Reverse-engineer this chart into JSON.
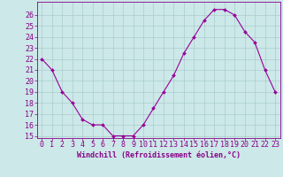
{
  "hours": [
    0,
    1,
    2,
    3,
    4,
    5,
    6,
    7,
    8,
    9,
    10,
    11,
    12,
    13,
    14,
    15,
    16,
    17,
    18,
    19,
    20,
    21,
    22,
    23
  ],
  "values": [
    22,
    21,
    19,
    18,
    16.5,
    16,
    16,
    15,
    15,
    15,
    16,
    17.5,
    19,
    20.5,
    22.5,
    24,
    25.5,
    26.5,
    26.5,
    26,
    24.5,
    23.5,
    21,
    19
  ],
  "line_color": "#990099",
  "marker_color": "#990099",
  "bg_color": "#cce8e8",
  "grid_color": "#aacccc",
  "xlabel": "Windchill (Refroidissement éolien,°C)",
  "ylim": [
    14.8,
    27.2
  ],
  "xlim": [
    -0.5,
    23.5
  ],
  "yticks": [
    15,
    16,
    17,
    18,
    19,
    20,
    21,
    22,
    23,
    24,
    25,
    26
  ],
  "xticks": [
    0,
    1,
    2,
    3,
    4,
    5,
    6,
    7,
    8,
    9,
    10,
    11,
    12,
    13,
    14,
    15,
    16,
    17,
    18,
    19,
    20,
    21,
    22,
    23
  ],
  "text_color": "#880088",
  "label_fontsize": 6,
  "tick_fontsize": 6
}
